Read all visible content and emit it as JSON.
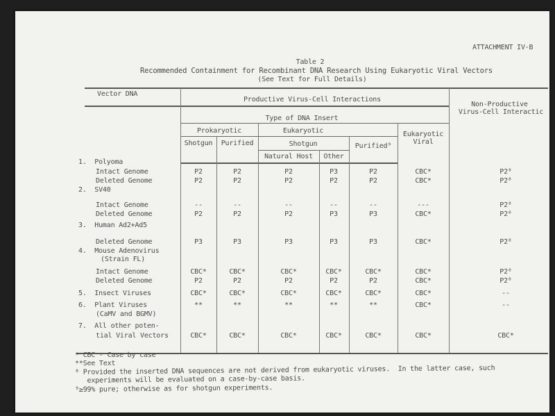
{
  "attachment": "ATTACHMENT IV-B",
  "table_number": "Table 2",
  "title": "Recommended Containment for Recombinant DNA Research Using Eukaryotic Viral Vectors",
  "subtitle": "(See Text for Full Details)",
  "headers": {
    "vector_dna": "Vector DNA",
    "productive": "Productive Virus-Cell Interactions",
    "non_productive_1": "Non-Productive",
    "non_productive_2": "Virus-Cell Interactic",
    "type_of_insert": "Type of DNA Insert",
    "prokaryotic": "Prokaryotic",
    "eukaryotic": "Eukaryotic",
    "eukaryotic_viral_1": "Eukaryotic",
    "eukaryotic_viral_2": "Viral",
    "shotgun": "Shotgun",
    "purified": "Purified",
    "euk_shotgun": "Shotgun",
    "euk_purified": "Purified⁹",
    "natural_host": "Natural Host",
    "other": "Other"
  },
  "rows": [
    {
      "label": "1.  Polyoma"
    },
    {
      "label": "Intact Genome",
      "values": [
        "P2",
        "P2",
        "P2",
        "P3",
        "P2",
        "CBC*",
        "P2⁸"
      ]
    },
    {
      "label": "Deleted Genome",
      "values": [
        "P2",
        "P2",
        "P2",
        "P2",
        "P2",
        "CBC*",
        "P2⁸"
      ]
    },
    {
      "label": "2.  SV40"
    },
    {
      "label": "Intact Genome",
      "values": [
        "--",
        "--",
        "--",
        "--",
        "--",
        "---",
        "P2⁸"
      ]
    },
    {
      "label": "Deleted Genome",
      "values": [
        "P2",
        "P2",
        "P2",
        "P3",
        "P3",
        "CBC*",
        "P2⁸"
      ]
    },
    {
      "label": "3.  Human Ad2+Ad5"
    },
    {
      "label": "Deleted Genome",
      "values": [
        "P3",
        "P3",
        "P3",
        "P3",
        "P3",
        "CBC*",
        "P2⁸"
      ]
    },
    {
      "label": "4.  Mouse Adenovirus"
    },
    {
      "label": "(Strain FL)"
    },
    {
      "label": "Intact Genome",
      "values": [
        "CBC*",
        "CBC*",
        "CBC*",
        "CBC*",
        "CBC*",
        "CBC*",
        "P2⁸"
      ]
    },
    {
      "label": "Deleted Genome",
      "values": [
        "P2",
        "P2",
        "P2",
        "P2",
        "P2",
        "CBC*",
        "P2⁸"
      ]
    },
    {
      "label": "5.  Insect Viruses",
      "values": [
        "CBC*",
        "CBC*",
        "CBC*",
        "CBC*",
        "CBC*",
        "CBC*",
        "--"
      ]
    },
    {
      "label": "6.  Plant Viruses",
      "values": [
        "**",
        "**",
        "**",
        "**",
        "**",
        "CBC*",
        "--"
      ]
    },
    {
      "label": "(CaMV and BGMV)"
    },
    {
      "label": "7.  All other poten-"
    },
    {
      "label": "tial Viral Vectors",
      "values": [
        "CBC*",
        "CBC*",
        "CBC*",
        "CBC*",
        "CBC*",
        "CBC*",
        "CBC*"
      ]
    }
  ],
  "footnotes": [
    "* CBC - Case by case",
    "**See Text",
    "⁸ Provided the inserted DNA sequences are not derived from eukaryotic viruses.  In the latter case, such",
    "   experiments will be evaluated on a case-by-case basis.",
    "⁹≥99% pure; otherwise as for shotgun experiments."
  ]
}
